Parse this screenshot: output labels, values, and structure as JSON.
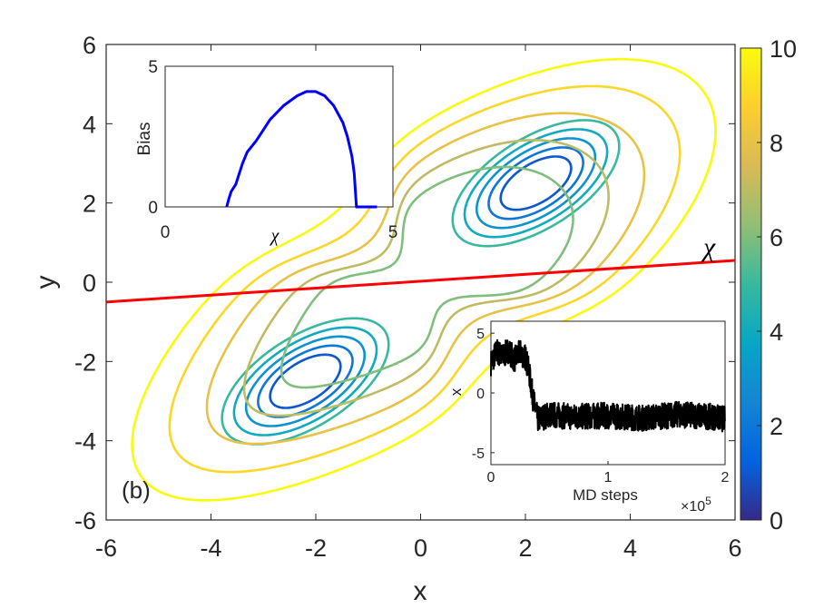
{
  "chart_data": [
    {
      "type": "contour",
      "panel_label": "(b)",
      "xlabel": "x",
      "ylabel": "y",
      "xlim": [
        -6,
        6
      ],
      "ylim": [
        -6,
        6
      ],
      "xticks": [
        "-6",
        "-4",
        "-2",
        "0",
        "2",
        "4",
        "6"
      ],
      "yticks": [
        "-6",
        "-4",
        "-2",
        "0",
        "2",
        "4",
        "6"
      ],
      "grid": false,
      "wells": [
        {
          "center": [
            -2.2,
            -2.5
          ],
          "tilt_deg": 45
        },
        {
          "center": [
            2.2,
            2.5
          ],
          "tilt_deg": 45
        }
      ],
      "contour_levels": [
        1,
        2,
        3,
        4,
        5,
        6,
        7,
        8,
        9,
        10
      ],
      "colorbar": {
        "range": [
          0,
          10
        ],
        "ticks": [
          "0",
          "2",
          "4",
          "6",
          "8",
          "10"
        ],
        "colormap": "parula",
        "stops": [
          "#352a87",
          "#0363e1",
          "#1485d4",
          "#06a7c6",
          "#38b99e",
          "#92bf73",
          "#d9ba56",
          "#fcce2e",
          "#f9fb0e"
        ]
      },
      "cv_line": {
        "label": "χ",
        "color": "#ff0000",
        "x": [
          -6,
          6
        ],
        "y": [
          -0.5,
          0.55
        ]
      }
    },
    {
      "type": "line",
      "inset": "top-left",
      "xlabel": "χ",
      "ylabel": "Bias",
      "xlim": [
        0,
        5
      ],
      "ylim": [
        0,
        5
      ],
      "xticks": [
        "0",
        "5"
      ],
      "yticks": [
        "0",
        "5"
      ],
      "series": [
        {
          "color": "#0000ff",
          "x": [
            1.35,
            1.4,
            1.45,
            1.55,
            1.7,
            1.8,
            2.0,
            2.3,
            2.6,
            2.9,
            3.1,
            3.3,
            3.5,
            3.7,
            3.9,
            4.0,
            4.1,
            4.15,
            4.2,
            4.3,
            4.5,
            4.65
          ],
          "y": [
            0,
            0.3,
            0.55,
            0.8,
            1.55,
            1.95,
            2.35,
            3.1,
            3.6,
            3.95,
            4.1,
            4.1,
            3.95,
            3.6,
            3.0,
            2.5,
            1.8,
            1.2,
            0.0,
            0.0,
            0.0,
            0.0
          ]
        }
      ]
    },
    {
      "type": "line",
      "inset": "bottom-right",
      "xlabel": "MD steps",
      "ylabel": "x",
      "xlim": [
        0,
        2
      ],
      "ylim": [
        -6,
        6
      ],
      "xticks": [
        "0",
        "1",
        "2"
      ],
      "yticks": [
        "-5",
        "0",
        "5"
      ],
      "x_multiplier": "×10",
      "x_multiplier_exp": "5",
      "series": [
        {
          "color": "#000000",
          "x": [
            0,
            0.05,
            0.1,
            0.15,
            0.2,
            0.25,
            0.3,
            0.33,
            0.36,
            0.4,
            0.5,
            0.7,
            1.0,
            1.3,
            1.6,
            1.9,
            2.0
          ],
          "y": [
            2.5,
            3.5,
            3.0,
            3.6,
            2.8,
            3.4,
            2.9,
            1.5,
            -0.5,
            -2.2,
            -1.8,
            -2.0,
            -1.9,
            -2.1,
            -1.8,
            -2.0,
            -2.2
          ]
        }
      ]
    }
  ]
}
